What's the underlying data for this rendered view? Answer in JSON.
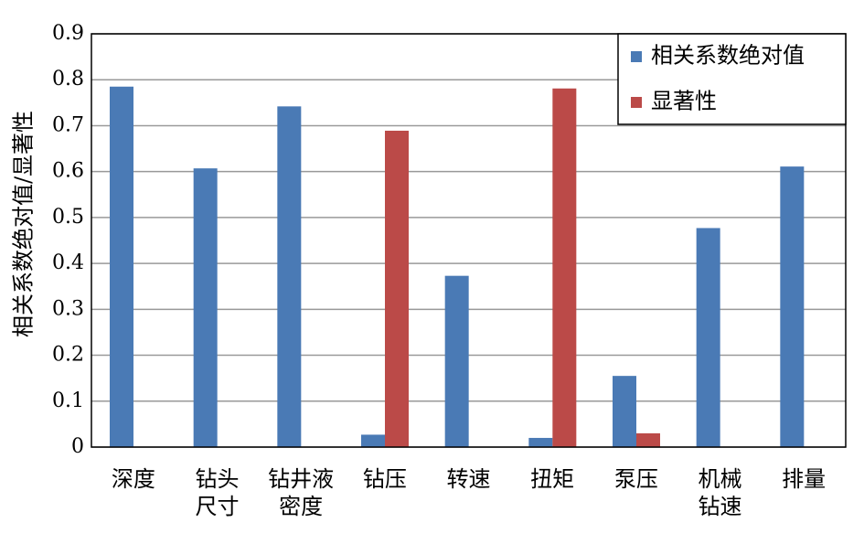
{
  "chart_data": {
    "type": "bar",
    "y_label": "相关系数绝对值/显著性",
    "categories": [
      "深度",
      "钻头\n尺寸",
      "钻井液\n密度",
      "钻压",
      "转速",
      "扭矩",
      "泵压",
      "机械\n钻速",
      "排量"
    ],
    "series": [
      {
        "name": "相关系数绝对值",
        "color": "#4a7ab5",
        "values": [
          0.785,
          0.607,
          0.742,
          0.027,
          0.373,
          0.02,
          0.155,
          0.477,
          0.611
        ]
      },
      {
        "name": "显著性",
        "color": "#bb4a48",
        "values": [
          0,
          0,
          0,
          0.689,
          0,
          0.781,
          0.03,
          0,
          0
        ]
      }
    ],
    "ylim": [
      0,
      0.9
    ],
    "yticks": [
      0,
      0.1,
      0.2,
      0.3,
      0.4,
      0.5,
      0.6,
      0.7,
      0.8,
      0.9
    ],
    "grid": true,
    "legend": "top-right"
  }
}
